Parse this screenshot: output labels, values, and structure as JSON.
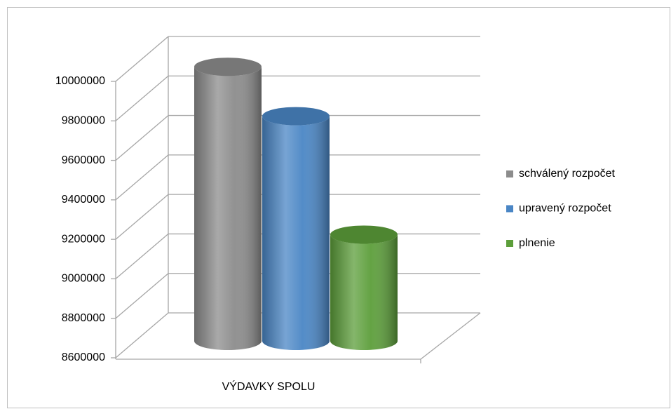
{
  "chart_data": {
    "type": "bar3d",
    "categories": [
      "VÝDAVKY SPOLU"
    ],
    "series": [
      {
        "name": "schválený rozpočet",
        "color": "#8c8c8c",
        "values": [
          9960000
        ]
      },
      {
        "name": "upravený rozpočet",
        "color": "#4a86c5",
        "values": [
          9710000
        ]
      },
      {
        "name": "plnenie",
        "color": "#5c9e3a",
        "values": [
          9110000
        ]
      }
    ],
    "ylim": [
      8600000,
      10000000
    ],
    "yticks": [
      8600000,
      8800000,
      9000000,
      9200000,
      9400000,
      9600000,
      9800000,
      10000000
    ],
    "grid": true,
    "legend": "right"
  }
}
